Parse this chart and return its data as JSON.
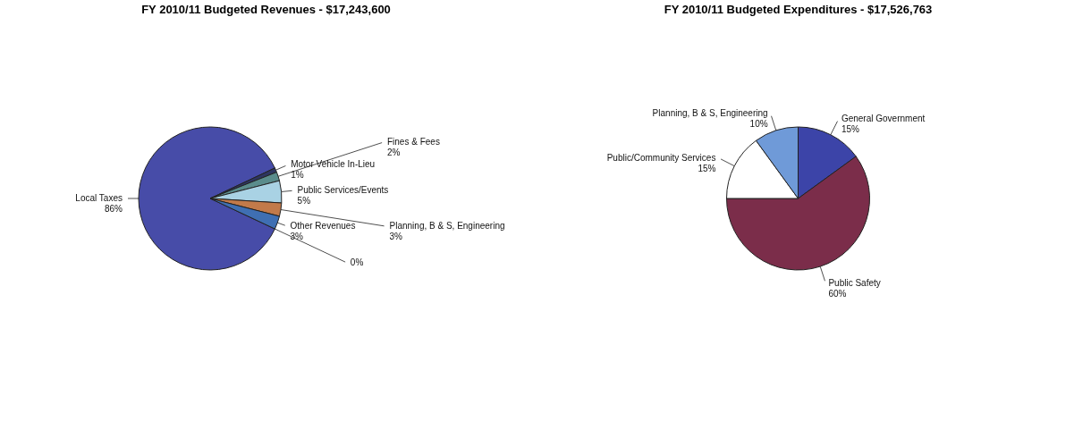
{
  "chart_data": [
    {
      "type": "pie",
      "title": "FY 2010/11 Budgeted Revenues - $17,243,600",
      "categories": [
        "Local Taxes",
        "Motor Vehicle In-Lieu",
        "Fines & Fees",
        "Public Services/Events",
        "Planning, B & S, Engineering",
        "Other Revenues",
        null
      ],
      "values": [
        86,
        1,
        2,
        5,
        3,
        3,
        0
      ],
      "value_labels": [
        "86%",
        "1%",
        "2%",
        "5%",
        "3%",
        "3%",
        "0%"
      ],
      "colors": [
        "#474ca8",
        "#2e3560",
        "#5a8c8c",
        "#a9d2e4",
        "#c27a4a",
        "#3f6fb3",
        "#cccccc"
      ]
    },
    {
      "type": "pie",
      "title": "FY 2010/11 Budgeted Expenditures - $17,526,763",
      "categories": [
        "General Government",
        "Public Safety",
        "Public/Community Services",
        "Planning, B & S, Engineering"
      ],
      "values": [
        15,
        60,
        15,
        10
      ],
      "value_labels": [
        "15%",
        "60%",
        "15%",
        "10%"
      ],
      "colors": [
        "#3c44a8",
        "#7b2d4a",
        "#ffffff",
        "#6f9ad8"
      ]
    }
  ]
}
